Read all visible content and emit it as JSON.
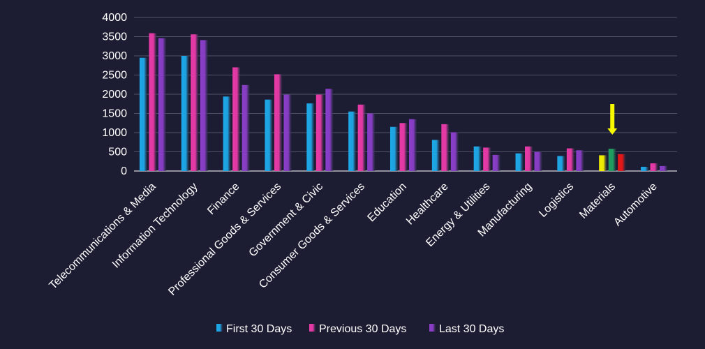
{
  "chart_data": {
    "type": "bar",
    "categories": [
      "Telecommunications & Media",
      "Information Technology",
      "Finance",
      "Professional Goods & Services",
      "Government & Civic",
      "Consumer Goods &  Services",
      "Education",
      "Healthcare",
      "Energy & Utilities",
      "Manufacturing",
      "Logistics",
      "Materials",
      "Automotive"
    ],
    "series": [
      {
        "name": "First 30 Days",
        "color": "#1ea8e8",
        "values": [
          2950,
          3000,
          1940,
          1860,
          1760,
          1550,
          1150,
          810,
          640,
          460,
          390,
          410,
          110
        ]
      },
      {
        "name": "Previous 30 Days",
        "color": "#e83aa8",
        "values": [
          3590,
          3560,
          2700,
          2520,
          1990,
          1730,
          1250,
          1220,
          610,
          640,
          590,
          580,
          200
        ]
      },
      {
        "name": "Last 30 Days",
        "color": "#8a3ec8",
        "values": [
          3460,
          3410,
          2240,
          1990,
          2140,
          1500,
          1350,
          1010,
          420,
          500,
          540,
          440,
          130
        ]
      }
    ],
    "highlight": {
      "category": "Materials",
      "colors": [
        "#f4f000",
        "#1fa060",
        "#e81818"
      ],
      "arrow_color": "#f8f800"
    },
    "ylim": [
      0,
      4000
    ],
    "yticks": [
      0,
      500,
      1000,
      1500,
      2000,
      2500,
      3000,
      3500,
      4000
    ],
    "grid": true,
    "legend_position": "bottom"
  }
}
